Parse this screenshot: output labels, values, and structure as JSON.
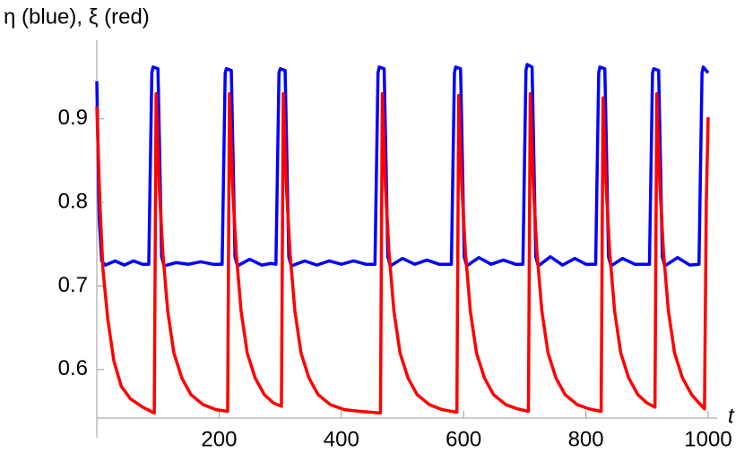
{
  "chart_data": {
    "type": "line",
    "y_label": "η (blue), ξ (red)",
    "x_label": "t",
    "xlim": [
      0,
      1000
    ],
    "ylim": [
      0.542,
      0.994
    ],
    "xticks": [
      200,
      400,
      600,
      800,
      1000
    ],
    "yticks": [
      0.6,
      0.7,
      0.8,
      0.9
    ],
    "series": [
      {
        "color": "#0000ff",
        "x": [
          0,
          4,
          8,
          14,
          30,
          45,
          60,
          75,
          85,
          90,
          92,
          100,
          103,
          106,
          110,
          130,
          150,
          170,
          190,
          205,
          210,
          212,
          220,
          223,
          226,
          230,
          250,
          270,
          285,
          293,
          298,
          300,
          308,
          311,
          314,
          318,
          340,
          360,
          380,
          400,
          420,
          440,
          455,
          460,
          462,
          470,
          473,
          476,
          480,
          500,
          520,
          540,
          560,
          580,
          585,
          587,
          595,
          598,
          601,
          605,
          625,
          645,
          665,
          685,
          697,
          702,
          704,
          712,
          715,
          718,
          722,
          742,
          762,
          782,
          800,
          816,
          821,
          823,
          831,
          834,
          837,
          841,
          860,
          880,
          904,
          909,
          911,
          919,
          922,
          925,
          929,
          950,
          970,
          985,
          990,
          992,
          1000
        ],
        "values": [
          0.945,
          0.78,
          0.73,
          0.725,
          0.73,
          0.725,
          0.73,
          0.726,
          0.726,
          0.955,
          0.962,
          0.96,
          0.85,
          0.735,
          0.724,
          0.728,
          0.726,
          0.729,
          0.726,
          0.726,
          0.955,
          0.96,
          0.958,
          0.85,
          0.735,
          0.724,
          0.732,
          0.725,
          0.727,
          0.726,
          0.955,
          0.96,
          0.958,
          0.85,
          0.735,
          0.724,
          0.73,
          0.725,
          0.73,
          0.726,
          0.73,
          0.726,
          0.726,
          0.955,
          0.962,
          0.96,
          0.85,
          0.735,
          0.724,
          0.733,
          0.726,
          0.731,
          0.726,
          0.726,
          0.955,
          0.962,
          0.96,
          0.85,
          0.735,
          0.724,
          0.734,
          0.726,
          0.731,
          0.726,
          0.726,
          0.958,
          0.965,
          0.962,
          0.85,
          0.735,
          0.724,
          0.735,
          0.725,
          0.733,
          0.726,
          0.726,
          0.955,
          0.962,
          0.96,
          0.85,
          0.735,
          0.724,
          0.733,
          0.726,
          0.726,
          0.955,
          0.96,
          0.958,
          0.85,
          0.735,
          0.724,
          0.734,
          0.725,
          0.726,
          0.955,
          0.962,
          0.955
        ]
      },
      {
        "color": "#ff0000",
        "x": [
          0,
          5,
          10,
          18,
          28,
          40,
          55,
          75,
          94,
          97,
          102,
          108,
          116,
          126,
          139,
          154,
          174,
          195,
          214,
          217,
          222,
          228,
          236,
          246,
          259,
          274,
          289,
          302,
          305,
          310,
          316,
          324,
          334,
          347,
          362,
          382,
          405,
          430,
          464,
          467,
          472,
          478,
          486,
          496,
          509,
          524,
          544,
          565,
          589,
          592,
          597,
          603,
          611,
          621,
          634,
          649,
          669,
          688,
          706,
          709,
          714,
          720,
          728,
          738,
          751,
          766,
          786,
          805,
          825,
          828,
          833,
          839,
          847,
          857,
          870,
          885,
          900,
          913,
          916,
          921,
          927,
          935,
          945,
          958,
          973,
          985,
          994,
          997,
          1000
        ],
        "values": [
          0.915,
          0.8,
          0.72,
          0.66,
          0.61,
          0.58,
          0.565,
          0.555,
          0.548,
          0.93,
          0.82,
          0.74,
          0.67,
          0.62,
          0.59,
          0.57,
          0.558,
          0.552,
          0.55,
          0.93,
          0.82,
          0.74,
          0.67,
          0.62,
          0.59,
          0.57,
          0.56,
          0.556,
          0.93,
          0.82,
          0.74,
          0.67,
          0.62,
          0.59,
          0.57,
          0.558,
          0.552,
          0.55,
          0.548,
          0.93,
          0.82,
          0.74,
          0.67,
          0.62,
          0.59,
          0.57,
          0.558,
          0.552,
          0.549,
          0.928,
          0.82,
          0.74,
          0.67,
          0.62,
          0.59,
          0.57,
          0.558,
          0.553,
          0.55,
          0.93,
          0.82,
          0.74,
          0.67,
          0.62,
          0.59,
          0.57,
          0.558,
          0.553,
          0.55,
          0.925,
          0.82,
          0.74,
          0.67,
          0.62,
          0.59,
          0.57,
          0.56,
          0.555,
          0.93,
          0.82,
          0.74,
          0.67,
          0.62,
          0.59,
          0.57,
          0.56,
          0.553,
          0.8,
          0.902
        ]
      }
    ]
  }
}
